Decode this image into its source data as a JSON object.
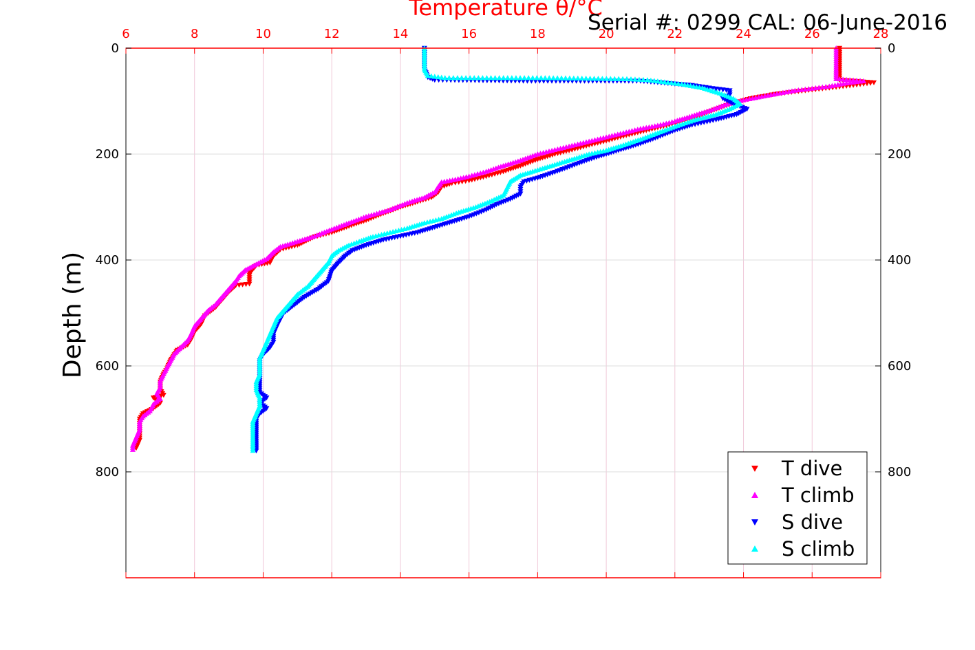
{
  "chart_data": {
    "type": "scatter",
    "title": "Temperature θ/°C",
    "annotation": "Serial #: 0299 CAL: 06-June-2016",
    "ylabel": "Depth (m)",
    "xlim": [
      6,
      28
    ],
    "ylim": [
      1000,
      0
    ],
    "x_ticks": [
      6,
      8,
      10,
      12,
      14,
      16,
      18,
      20,
      22,
      24,
      26,
      28
    ],
    "y_ticks": [
      0,
      200,
      400,
      600,
      800
    ],
    "grid": true,
    "legend_position": "bottom-right",
    "colors": {
      "axis_top": "#ff0000",
      "grid_vertical": "#f0c8d8",
      "grid_horizontal": "#dddddd"
    },
    "series": [
      {
        "name": "T dive",
        "marker": "down-triangle",
        "color": "#ff0000",
        "points": [
          [
            26.8,
            0
          ],
          [
            26.8,
            20
          ],
          [
            26.8,
            40
          ],
          [
            26.8,
            60
          ],
          [
            27.8,
            65
          ],
          [
            27.2,
            70
          ],
          [
            26.5,
            75
          ],
          [
            25.8,
            80
          ],
          [
            25.0,
            86
          ],
          [
            24.2,
            95
          ],
          [
            23.5,
            108
          ],
          [
            23.0,
            120
          ],
          [
            22.5,
            132
          ],
          [
            22.0,
            142
          ],
          [
            21.5,
            150
          ],
          [
            21.0,
            158
          ],
          [
            20.5,
            166
          ],
          [
            20.0,
            175
          ],
          [
            19.5,
            183
          ],
          [
            19.0,
            192
          ],
          [
            18.5,
            200
          ],
          [
            18.0,
            210
          ],
          [
            17.5,
            222
          ],
          [
            17.0,
            233
          ],
          [
            16.5,
            242
          ],
          [
            16.0,
            250
          ],
          [
            15.5,
            255
          ],
          [
            15.2,
            262
          ],
          [
            15.1,
            272
          ],
          [
            14.9,
            282
          ],
          [
            14.5,
            290
          ],
          [
            14.0,
            300
          ],
          [
            13.5,
            312
          ],
          [
            13.0,
            325
          ],
          [
            12.5,
            336
          ],
          [
            12.0,
            348
          ],
          [
            11.5,
            356
          ],
          [
            11.0,
            372
          ],
          [
            10.5,
            380
          ],
          [
            10.3,
            392
          ],
          [
            10.2,
            405
          ],
          [
            9.8,
            410
          ],
          [
            9.6,
            425
          ],
          [
            9.6,
            445
          ],
          [
            9.2,
            448
          ],
          [
            9.0,
            460
          ],
          [
            8.8,
            475
          ],
          [
            8.6,
            490
          ],
          [
            8.3,
            505
          ],
          [
            8.2,
            520
          ],
          [
            8.0,
            535
          ],
          [
            7.9,
            550
          ],
          [
            7.8,
            560
          ],
          [
            7.5,
            570
          ],
          [
            7.3,
            590
          ],
          [
            7.2,
            605
          ],
          [
            7.1,
            615
          ],
          [
            7.0,
            630
          ],
          [
            7.0,
            645
          ],
          [
            7.1,
            655
          ],
          [
            6.8,
            660
          ],
          [
            7.0,
            670
          ],
          [
            6.8,
            680
          ],
          [
            6.5,
            690
          ],
          [
            6.4,
            700
          ],
          [
            6.4,
            720
          ],
          [
            6.4,
            740
          ],
          [
            6.3,
            755
          ]
        ]
      },
      {
        "name": "T climb",
        "marker": "up-triangle",
        "color": "#ff00ff",
        "points": [
          [
            26.7,
            0
          ],
          [
            26.7,
            20
          ],
          [
            26.7,
            40
          ],
          [
            26.7,
            58
          ],
          [
            27.5,
            62
          ],
          [
            27.0,
            66
          ],
          [
            26.5,
            72
          ],
          [
            26.0,
            76
          ],
          [
            25.5,
            80
          ],
          [
            24.8,
            88
          ],
          [
            24.0,
            98
          ],
          [
            23.5,
            106
          ],
          [
            23.0,
            118
          ],
          [
            22.5,
            128
          ],
          [
            22.0,
            138
          ],
          [
            21.5,
            146
          ],
          [
            21.0,
            152
          ],
          [
            20.5,
            160
          ],
          [
            20.0,
            168
          ],
          [
            19.5,
            176
          ],
          [
            19.0,
            184
          ],
          [
            18.5,
            192
          ],
          [
            18.0,
            200
          ],
          [
            17.5,
            212
          ],
          [
            17.0,
            222
          ],
          [
            16.5,
            233
          ],
          [
            16.0,
            242
          ],
          [
            15.6,
            248
          ],
          [
            15.2,
            253
          ],
          [
            15.1,
            262
          ],
          [
            15.0,
            272
          ],
          [
            14.7,
            282
          ],
          [
            14.2,
            292
          ],
          [
            13.7,
            305
          ],
          [
            13.0,
            318
          ],
          [
            12.5,
            330
          ],
          [
            12.0,
            342
          ],
          [
            11.5,
            355
          ],
          [
            11.0,
            365
          ],
          [
            10.5,
            375
          ],
          [
            10.3,
            385
          ],
          [
            10.1,
            398
          ],
          [
            9.8,
            408
          ],
          [
            9.5,
            418
          ],
          [
            9.3,
            430
          ],
          [
            9.2,
            440
          ],
          [
            9.0,
            455
          ],
          [
            8.8,
            470
          ],
          [
            8.6,
            485
          ],
          [
            8.4,
            495
          ],
          [
            8.2,
            510
          ],
          [
            8.0,
            525
          ],
          [
            7.9,
            540
          ],
          [
            7.8,
            552
          ],
          [
            7.6,
            565
          ],
          [
            7.4,
            578
          ],
          [
            7.3,
            590
          ],
          [
            7.2,
            602
          ],
          [
            7.1,
            615
          ],
          [
            7.0,
            628
          ],
          [
            7.0,
            640
          ],
          [
            6.9,
            652
          ],
          [
            7.0,
            662
          ],
          [
            6.8,
            672
          ],
          [
            6.7,
            685
          ],
          [
            6.5,
            695
          ],
          [
            6.4,
            705
          ],
          [
            6.4,
            720
          ],
          [
            6.3,
            735
          ],
          [
            6.2,
            750
          ],
          [
            6.2,
            758
          ]
        ]
      },
      {
        "name": "S dive",
        "marker": "down-triangle",
        "color": "#0000ff",
        "points": [
          [
            14.7,
            0
          ],
          [
            14.7,
            20
          ],
          [
            14.7,
            40
          ],
          [
            14.8,
            55
          ],
          [
            15.0,
            60
          ],
          [
            17.7,
            62
          ],
          [
            20.2,
            62
          ],
          [
            21.0,
            62
          ],
          [
            22.5,
            70
          ],
          [
            23.0,
            75
          ],
          [
            23.6,
            80
          ],
          [
            23.6,
            88
          ],
          [
            23.4,
            95
          ],
          [
            23.7,
            105
          ],
          [
            24.1,
            115
          ],
          [
            23.8,
            125
          ],
          [
            23.2,
            135
          ],
          [
            22.5,
            145
          ],
          [
            22.0,
            155
          ],
          [
            21.5,
            168
          ],
          [
            21.0,
            180
          ],
          [
            20.5,
            190
          ],
          [
            20.0,
            200
          ],
          [
            19.5,
            210
          ],
          [
            19.0,
            222
          ],
          [
            18.5,
            234
          ],
          [
            18.0,
            245
          ],
          [
            17.6,
            252
          ],
          [
            17.5,
            262
          ],
          [
            17.5,
            275
          ],
          [
            17.2,
            285
          ],
          [
            16.8,
            295
          ],
          [
            16.5,
            305
          ],
          [
            16.0,
            318
          ],
          [
            15.5,
            328
          ],
          [
            15.0,
            338
          ],
          [
            14.5,
            348
          ],
          [
            14.0,
            355
          ],
          [
            13.5,
            362
          ],
          [
            13.0,
            372
          ],
          [
            12.6,
            382
          ],
          [
            12.4,
            392
          ],
          [
            12.2,
            405
          ],
          [
            12.0,
            420
          ],
          [
            11.9,
            440
          ],
          [
            11.6,
            455
          ],
          [
            11.2,
            470
          ],
          [
            10.9,
            485
          ],
          [
            10.6,
            500
          ],
          [
            10.5,
            512
          ],
          [
            10.4,
            525
          ],
          [
            10.3,
            540
          ],
          [
            10.3,
            555
          ],
          [
            10.2,
            565
          ],
          [
            10.0,
            578
          ],
          [
            9.9,
            590
          ],
          [
            9.9,
            605
          ],
          [
            9.9,
            620
          ],
          [
            9.9,
            635
          ],
          [
            9.9,
            650
          ],
          [
            10.1,
            660
          ],
          [
            9.9,
            670
          ],
          [
            10.1,
            680
          ],
          [
            9.9,
            690
          ],
          [
            9.8,
            700
          ],
          [
            9.8,
            715
          ],
          [
            9.8,
            730
          ],
          [
            9.8,
            745
          ],
          [
            9.8,
            760
          ]
        ]
      },
      {
        "name": "S climb",
        "marker": "up-triangle",
        "color": "#00ffff",
        "points": [
          [
            14.7,
            0
          ],
          [
            14.7,
            20
          ],
          [
            14.7,
            40
          ],
          [
            14.8,
            52
          ],
          [
            15.3,
            56
          ],
          [
            18.1,
            56
          ],
          [
            20.6,
            58
          ],
          [
            21.2,
            60
          ],
          [
            21.7,
            64
          ],
          [
            22.2,
            68
          ],
          [
            22.8,
            75
          ],
          [
            23.3,
            85
          ],
          [
            23.7,
            95
          ],
          [
            23.9,
            105
          ],
          [
            23.6,
            115
          ],
          [
            23.2,
            125
          ],
          [
            22.6,
            135
          ],
          [
            22.0,
            148
          ],
          [
            21.5,
            160
          ],
          [
            21.0,
            172
          ],
          [
            20.5,
            183
          ],
          [
            20.0,
            193
          ],
          [
            19.5,
            200
          ],
          [
            19.0,
            210
          ],
          [
            18.5,
            220
          ],
          [
            18.0,
            230
          ],
          [
            17.5,
            240
          ],
          [
            17.2,
            252
          ],
          [
            17.1,
            265
          ],
          [
            17.0,
            278
          ],
          [
            16.6,
            290
          ],
          [
            16.2,
            300
          ],
          [
            15.7,
            310
          ],
          [
            15.2,
            322
          ],
          [
            14.7,
            330
          ],
          [
            14.2,
            340
          ],
          [
            13.7,
            348
          ],
          [
            13.2,
            356
          ],
          [
            12.8,
            365
          ],
          [
            12.5,
            372
          ],
          [
            12.2,
            382
          ],
          [
            12.0,
            392
          ],
          [
            11.9,
            405
          ],
          [
            11.7,
            420
          ],
          [
            11.5,
            435
          ],
          [
            11.3,
            450
          ],
          [
            11.0,
            465
          ],
          [
            10.8,
            480
          ],
          [
            10.6,
            495
          ],
          [
            10.4,
            510
          ],
          [
            10.3,
            525
          ],
          [
            10.2,
            540
          ],
          [
            10.1,
            555
          ],
          [
            10.0,
            570
          ],
          [
            9.9,
            585
          ],
          [
            9.9,
            600
          ],
          [
            9.9,
            615
          ],
          [
            9.8,
            630
          ],
          [
            9.8,
            645
          ],
          [
            9.9,
            660
          ],
          [
            9.9,
            675
          ],
          [
            9.8,
            690
          ],
          [
            9.7,
            705
          ],
          [
            9.7,
            720
          ],
          [
            9.7,
            735
          ],
          [
            9.7,
            750
          ],
          [
            9.7,
            760
          ]
        ]
      }
    ]
  }
}
